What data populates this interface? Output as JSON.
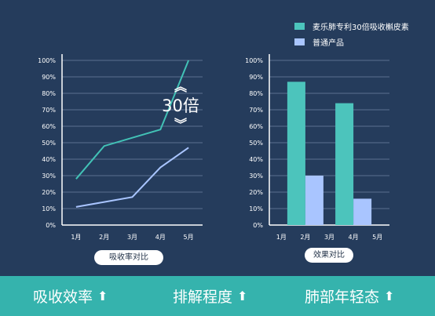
{
  "colors": {
    "background": "#253c5c",
    "teal": "#42c2b6",
    "light_blue": "#a9c5ff",
    "axis": "#ffffff",
    "grid": "#5c7090",
    "footer": "#35b3ad"
  },
  "chart_data": [
    {
      "type": "line",
      "categories": [
        "1月",
        "2月",
        "3月",
        "4月",
        "5月"
      ],
      "series": [
        {
          "values": [
            28,
            48,
            53,
            58,
            100
          ],
          "color": "#42c2b6"
        },
        {
          "values": [
            11,
            14,
            17,
            35,
            47
          ],
          "color": "#a9c5ff"
        }
      ],
      "ylim": [
        0,
        100
      ],
      "y_ticks": [
        "0%",
        "10%",
        "20%",
        "30%",
        "40%",
        "50%",
        "60%",
        "70%",
        "80%",
        "90%",
        "100%"
      ],
      "grid": true,
      "caption": "吸收率对比",
      "annotation": "30倍"
    },
    {
      "type": "bar",
      "categories": [
        "1月",
        "2月",
        "3月",
        "4月",
        "5月"
      ],
      "series": [
        {
          "name": "麦乐肺专利30倍吸收槲皮素",
          "values": [
            null,
            87,
            null,
            74,
            null
          ],
          "color": "#4cc4bc"
        },
        {
          "name": "普通产品",
          "values": [
            null,
            30,
            null,
            16,
            null
          ],
          "color": "#a9c5ff"
        }
      ],
      "ylim": [
        0,
        100
      ],
      "y_ticks": [
        "0%",
        "10%",
        "20%",
        "30%",
        "40%",
        "50%",
        "60%",
        "70%",
        "80%",
        "90%",
        "100%"
      ],
      "grid": true,
      "legend_position": "top-right",
      "caption": "效果对比"
    }
  ],
  "footer": {
    "items": [
      {
        "label": "吸收效率",
        "icon": "up-arrow-icon"
      },
      {
        "label": "排解程度",
        "icon": "up-arrow-icon"
      },
      {
        "label": "肺部年轻态",
        "icon": "up-arrow-icon"
      }
    ]
  }
}
